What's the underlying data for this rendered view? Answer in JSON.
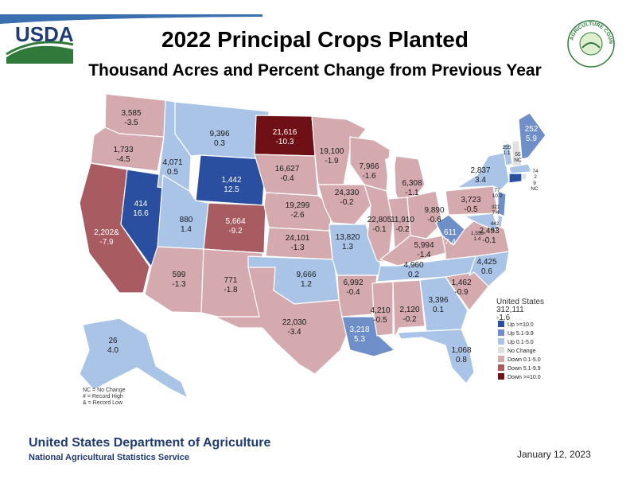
{
  "header": {
    "title": "2022 Principal Crops Planted",
    "subtitle": "Thousand Acres and Percent Change from Previous Year",
    "logo_text": "USDA",
    "seal_text": "AGRICULTURE COUNTS"
  },
  "colors": {
    "up_ge10": "#2b4fa0",
    "up_5_10": "#6f8fc9",
    "up_0_5": "#a9c4e6",
    "no_change": "#e0e0e0",
    "down_0_5": "#d4aaae",
    "down_5_10": "#a85c62",
    "down_ge10": "#6e1016"
  },
  "states": {
    "WA": {
      "value": "3,585",
      "change": "-3.5"
    },
    "OR": {
      "value": "1,733",
      "change": "-4.5"
    },
    "ID": {
      "value": "4,071",
      "change": "0.5"
    },
    "MT": {
      "value": "9,396",
      "change": "0.3"
    },
    "WY": {
      "value": "1,442",
      "change": "12.5"
    },
    "ND": {
      "value": "21,616",
      "change": "-10.3"
    },
    "SD": {
      "value": "16,627",
      "change": "-0.4"
    },
    "NE": {
      "value": "19,299",
      "change": "-2.6"
    },
    "KS": {
      "value": "24,101",
      "change": "-1.3"
    },
    "MN": {
      "value": "19,100",
      "change": "-1.9"
    },
    "WI": {
      "value": "7,966",
      "change": "-1.6"
    },
    "MI": {
      "value": "6,308",
      "change": "-1.1"
    },
    "IA": {
      "value": "24,330",
      "change": "-0.2"
    },
    "IL": {
      "value": "22,805",
      "change": "-0.1"
    },
    "IN": {
      "value": "11,910",
      "change": "-0.2"
    },
    "OH": {
      "value": "9,890",
      "change": "-0.6"
    },
    "NV": {
      "value": "414",
      "change": "16.6"
    },
    "CA": {
      "value": "2,202&",
      "change": "-7.9"
    },
    "UT": {
      "value": "880",
      "change": "1.4"
    },
    "CO": {
      "value": "5,664",
      "change": "-9.2"
    },
    "AZ": {
      "value": "599",
      "change": "-1.3"
    },
    "NM": {
      "value": "771",
      "change": "-1.8"
    },
    "TX": {
      "value": "22,030",
      "change": "-3.4"
    },
    "OK": {
      "value": "9,666",
      "change": "1.2"
    },
    "MO": {
      "value": "13,820",
      "change": "1.3"
    },
    "AR": {
      "value": "6,992",
      "change": "-0.4"
    },
    "LA": {
      "value": "3,218",
      "change": "5.3"
    },
    "MS": {
      "value": "4,210",
      "change": "-0.5"
    },
    "AL": {
      "value": "2,120",
      "change": "-0.2"
    },
    "GA": {
      "value": "3,396",
      "change": "0.1"
    },
    "FL": {
      "value": "1,068",
      "change": "0.8"
    },
    "TN": {
      "value": "4,960",
      "change": "0.2"
    },
    "KY": {
      "value": "5,994",
      "change": "-1.4"
    },
    "WV": {
      "value": "611",
      "change": "7.4"
    },
    "VA": {
      "value": "2,493",
      "change": "-0.1"
    },
    "NC": {
      "value": "4,425",
      "change": "0.6"
    },
    "SC": {
      "value": "1,462",
      "change": "-0.9"
    },
    "PA": {
      "value": "3,723",
      "change": "-0.5"
    },
    "NY": {
      "value": "2,837",
      "change": "3.4"
    },
    "ME": {
      "value": "252",
      "change": "5.9"
    },
    "VT": {
      "value": "255",
      "change": "1.1"
    },
    "NH": {
      "value": "55",
      "change": "NC"
    },
    "MA": {
      "value": "74",
      "change": "2"
    },
    "RI": {
      "value": "9",
      "change": "NC"
    },
    "CT": {
      "value": "77",
      "change": "10.0"
    },
    "NJ": {
      "value": "321",
      "change": "7.4"
    },
    "DE": {
      "value": "442",
      "change": "4.7"
    },
    "MD": {
      "value": "1,558",
      "change": "1.4"
    },
    "AK": {
      "value": "26",
      "change": "4.0"
    }
  },
  "us_total": {
    "label": "United States",
    "value": "312,111",
    "change": "-1.6"
  },
  "legend": [
    {
      "label": "Up >=10.0",
      "color": "#2b4fa0"
    },
    {
      "label": "Up 5.1-9.9",
      "color": "#6f8fc9"
    },
    {
      "label": "Up 0.1-5.0",
      "color": "#a9c4e6"
    },
    {
      "label": "No Change",
      "color": "#e0e0e0"
    },
    {
      "label": "Down 0.1-5.0",
      "color": "#d4aaae"
    },
    {
      "label": "Down 5.1-9.9",
      "color": "#a85c62"
    },
    {
      "label": "Down >=10.0",
      "color": "#6e1016"
    }
  ],
  "notes": [
    "NC = No Change",
    "# = Record High",
    "& = Record Low"
  ],
  "footer": {
    "org": "United States Department of Agriculture",
    "sub": "National Agricultural Statistics Service",
    "date": "January 12, 2023"
  }
}
